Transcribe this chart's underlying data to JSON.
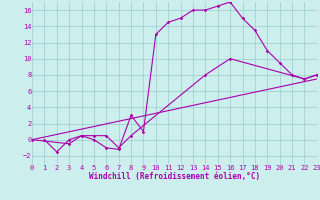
{
  "xlabel": "Windchill (Refroidissement éolien,°C)",
  "xlim": [
    0,
    23
  ],
  "ylim": [
    -3,
    17
  ],
  "xticks": [
    0,
    1,
    2,
    3,
    4,
    5,
    6,
    7,
    8,
    9,
    10,
    11,
    12,
    13,
    14,
    15,
    16,
    17,
    18,
    19,
    20,
    21,
    22,
    23
  ],
  "yticks": [
    -2,
    0,
    2,
    4,
    6,
    8,
    10,
    12,
    14,
    16
  ],
  "bg_color": "#cceeed",
  "line_color": "#aa00aa",
  "grid_color": "#99cccc",
  "line1_x": [
    1,
    2,
    3,
    4,
    5,
    6,
    7,
    8,
    9,
    10,
    11,
    12,
    13,
    14,
    15,
    16,
    17,
    18,
    19,
    20,
    21,
    22,
    23
  ],
  "line1_y": [
    0,
    -1.5,
    0,
    0.5,
    0,
    -1,
    -1.2,
    3,
    1,
    13,
    14.5,
    15,
    16,
    16,
    16.5,
    17,
    15,
    13.5,
    11,
    9.5,
    8,
    7.5,
    8
  ],
  "line2_x": [
    0,
    3,
    4,
    5,
    6,
    7,
    8,
    14,
    16,
    22,
    23
  ],
  "line2_y": [
    0,
    -0.5,
    0.5,
    0.5,
    0.5,
    -1,
    0.5,
    8,
    10,
    7.5,
    8
  ],
  "line3_x": [
    0,
    23
  ],
  "line3_y": [
    0,
    7.5
  ],
  "xlabel_fontsize": 5.5,
  "tick_fontsize": 5,
  "marker_size": 1.8,
  "linewidth": 0.8
}
